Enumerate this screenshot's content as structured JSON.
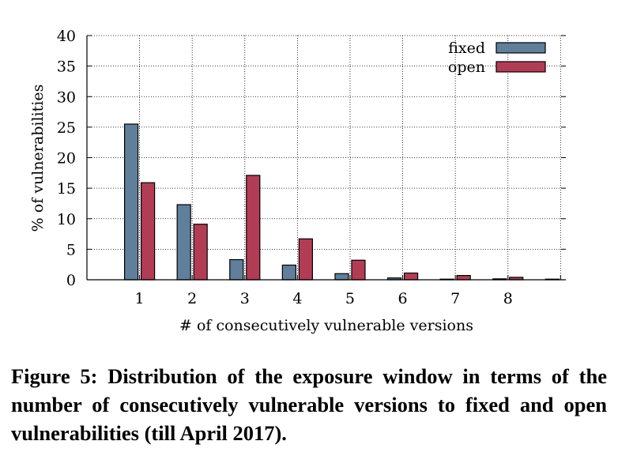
{
  "chart_data": {
    "type": "bar",
    "categories": [
      "1",
      "2",
      "3",
      "4",
      "5",
      "6",
      "7",
      "8",
      ""
    ],
    "series": [
      {
        "name": "fixed",
        "color": "#5f7f9b",
        "values": [
          25.5,
          12.3,
          3.3,
          2.4,
          1.0,
          0.3,
          0.1,
          0.15,
          0.1
        ]
      },
      {
        "name": "open",
        "color": "#b33c55",
        "values": [
          15.9,
          9.1,
          17.1,
          6.7,
          3.2,
          1.1,
          0.7,
          0.4,
          0
        ]
      }
    ],
    "xlabel": "# of consecutively vulnerable versions",
    "ylabel": "% of vulnerabilities",
    "ylim": [
      0,
      40
    ],
    "yticks": [
      "0",
      "5",
      "10",
      "15",
      "20",
      "25",
      "30",
      "35",
      "40"
    ],
    "grid": true,
    "legend_position": "top-right"
  },
  "caption": "Figure 5: Distribution of the exposure window in terms of the number of consecutively vulnerable versions to fixed and open vulnerabilities (till April 2017)."
}
